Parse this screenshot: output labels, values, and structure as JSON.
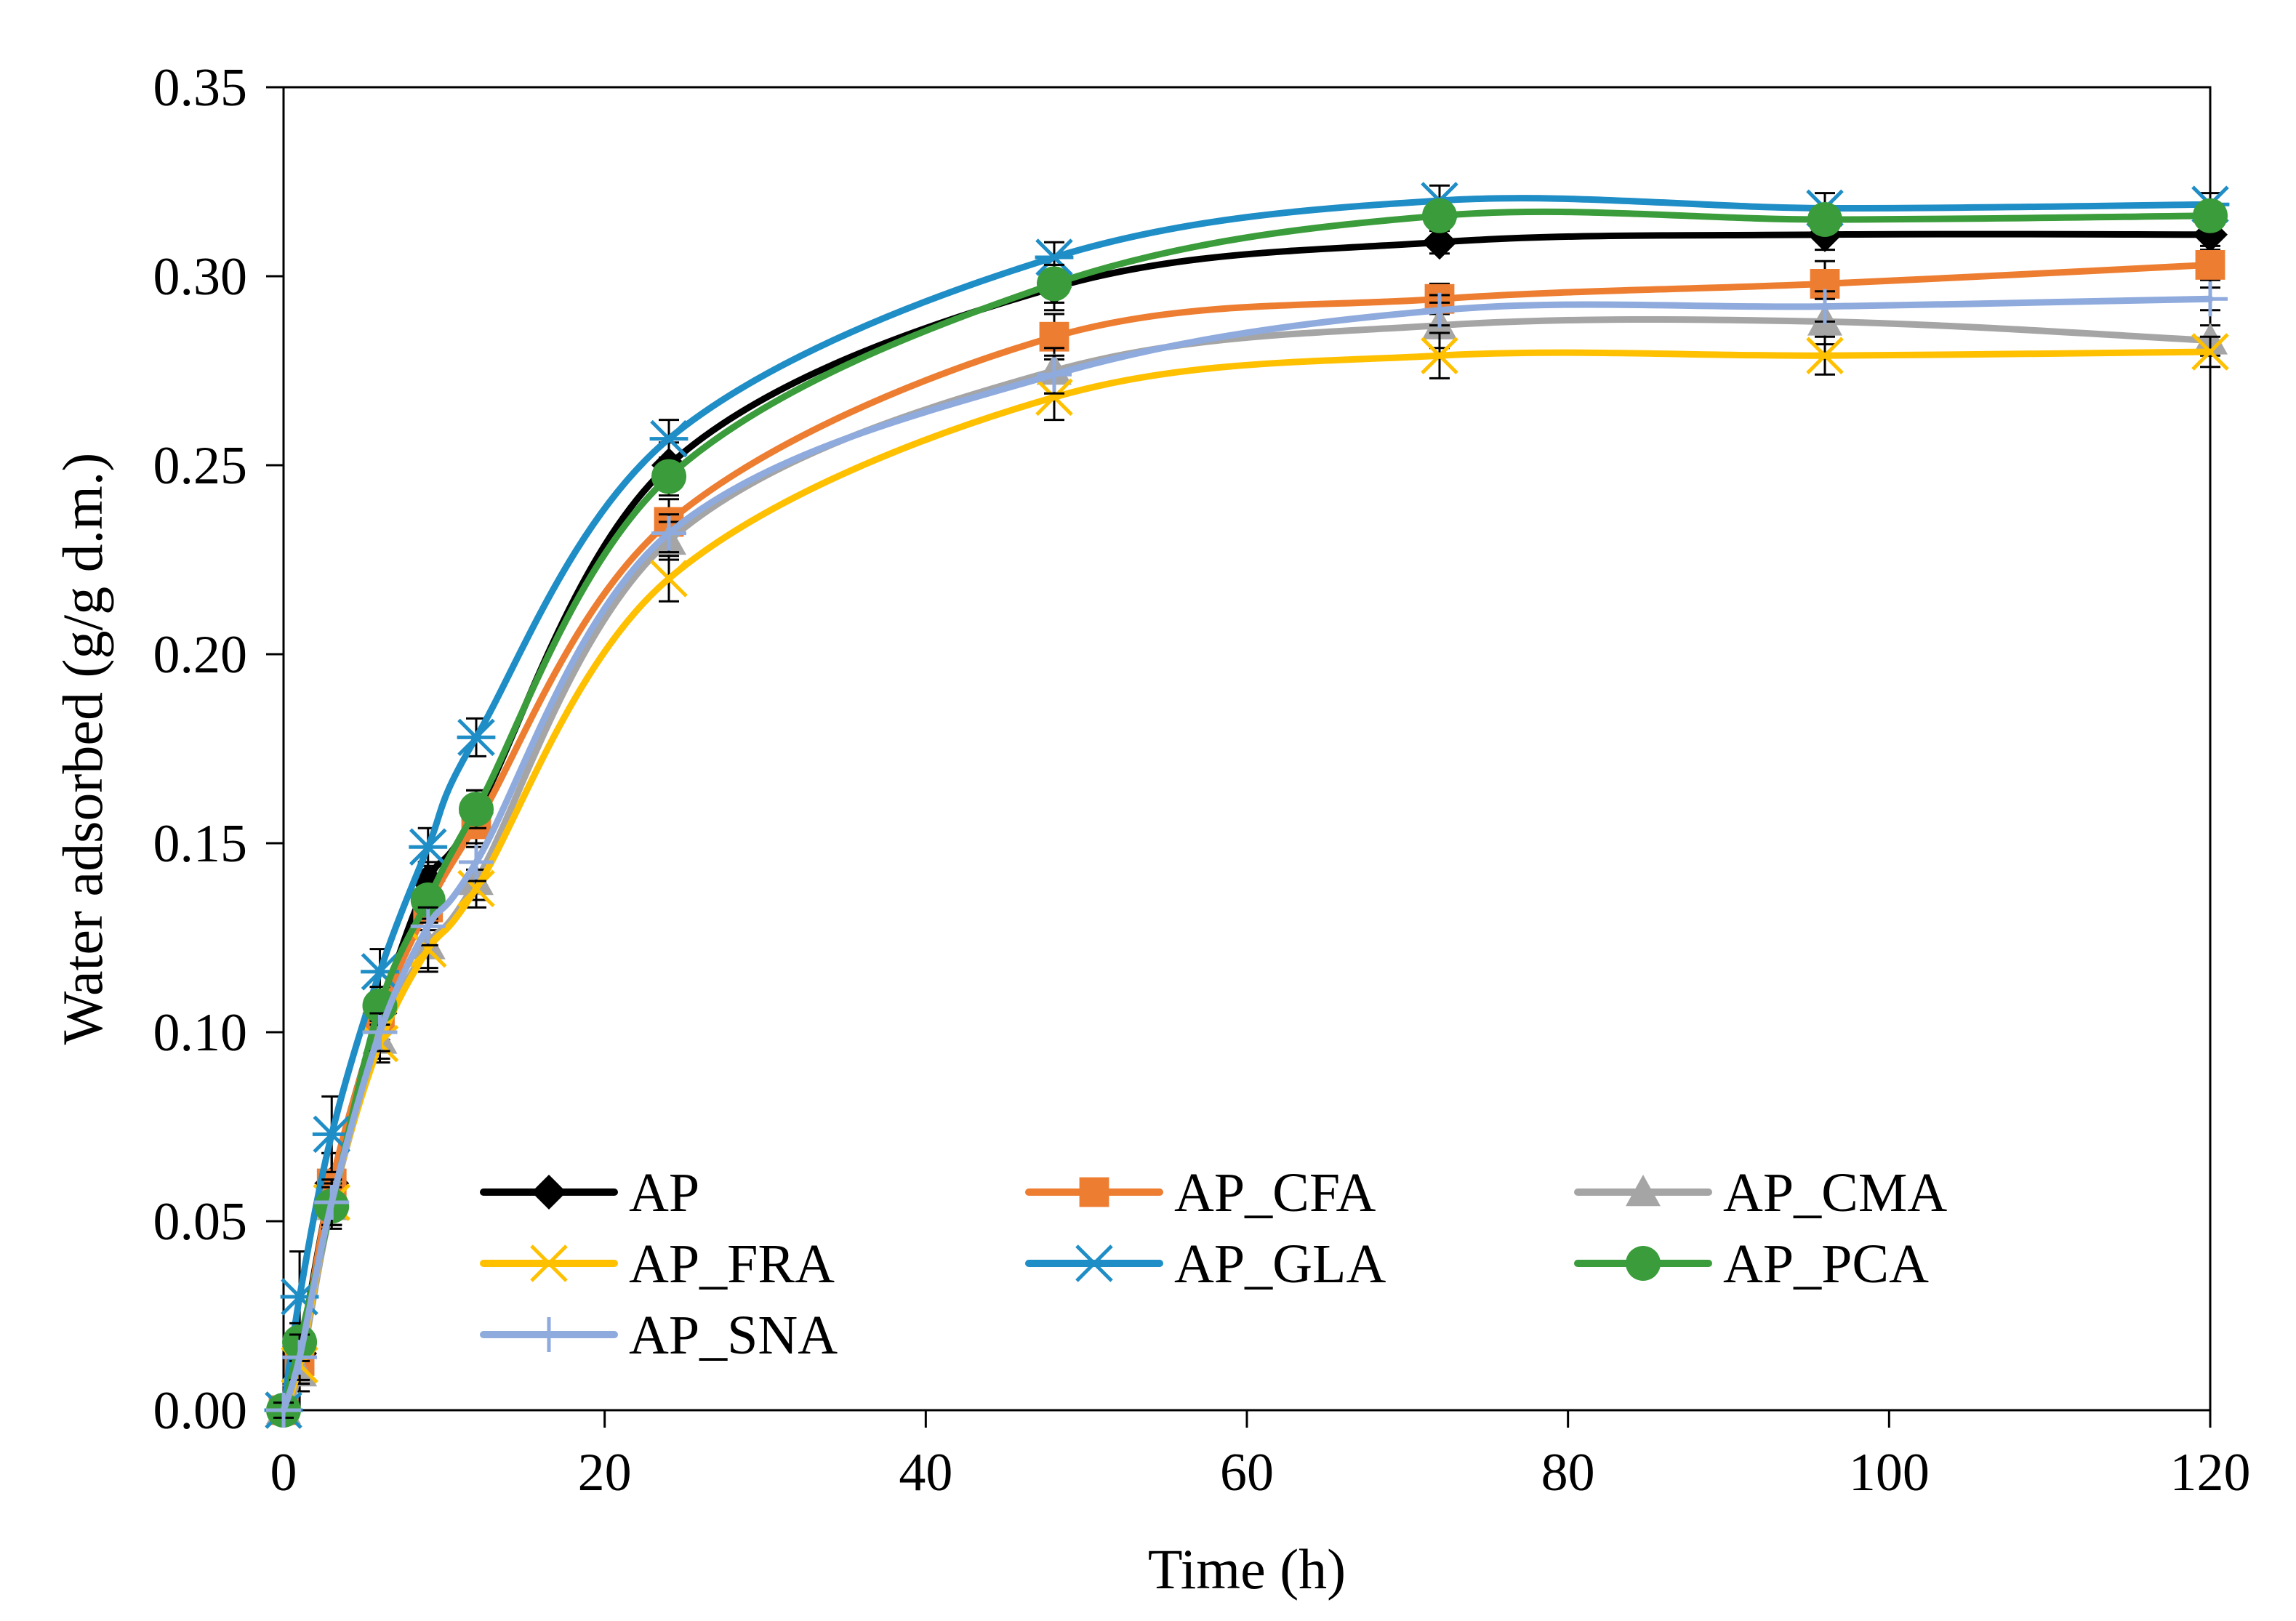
{
  "chart_data": {
    "type": "line",
    "title": "",
    "xlabel": "Time (h)",
    "ylabel": "Water adsorbed (g/g d.m.)",
    "xlim": [
      0,
      120
    ],
    "ylim": [
      0,
      0.35
    ],
    "xticks": [
      0,
      20,
      40,
      60,
      80,
      100,
      120
    ],
    "yticks": [
      0.0,
      0.05,
      0.1,
      0.15,
      0.2,
      0.25,
      0.3,
      0.35
    ],
    "xtick_labels": [
      "0",
      "20",
      "40",
      "60",
      "80",
      "100",
      "120"
    ],
    "ytick_labels": [
      "0.00",
      "0.05",
      "0.10",
      "0.15",
      "0.20",
      "0.25",
      "0.30",
      "0.35"
    ],
    "grid": false,
    "legend_position": "bottom-center inside plot",
    "x": [
      0,
      1,
      3,
      6,
      9,
      12,
      24,
      48,
      72,
      96,
      120
    ],
    "series": [
      {
        "name": "AP",
        "color": "#000000",
        "marker": "diamond",
        "values": [
          0.0,
          0.015,
          0.06,
          0.105,
          0.14,
          0.158,
          0.25,
          0.297,
          0.309,
          0.311,
          0.311
        ],
        "errors": [
          0.002,
          0.015,
          0.008,
          0.005,
          0.005,
          0.006,
          0.006,
          0.006,
          0.003,
          0.004,
          0.003
        ]
      },
      {
        "name": "AP_CFA",
        "color": "#ED7D31",
        "marker": "square",
        "values": [
          0.0,
          0.013,
          0.06,
          0.104,
          0.133,
          0.155,
          0.235,
          0.284,
          0.294,
          0.298,
          0.303
        ],
        "errors": [
          0.002,
          0.006,
          0.008,
          0.006,
          0.006,
          0.006,
          0.006,
          0.006,
          0.004,
          0.006,
          0.004
        ]
      },
      {
        "name": "AP_CMA",
        "color": "#A5A5A5",
        "marker": "triangle",
        "values": [
          0.0,
          0.01,
          0.054,
          0.098,
          0.123,
          0.14,
          0.23,
          0.275,
          0.287,
          0.288,
          0.283
        ],
        "errors": [
          0.002,
          0.005,
          0.006,
          0.005,
          0.006,
          0.005,
          0.005,
          0.006,
          0.006,
          0.006,
          0.004
        ]
      },
      {
        "name": "AP_FRA",
        "color": "#FFC000",
        "marker": "x",
        "values": [
          0.0,
          0.012,
          0.055,
          0.097,
          0.122,
          0.138,
          0.22,
          0.268,
          0.279,
          0.279,
          0.28
        ],
        "errors": [
          0.002,
          0.005,
          0.006,
          0.005,
          0.006,
          0.005,
          0.006,
          0.006,
          0.006,
          0.005,
          0.004
        ]
      },
      {
        "name": "AP_GLA",
        "color": "#1F8DC6",
        "marker": "asterisk",
        "values": [
          0.0,
          0.03,
          0.073,
          0.116,
          0.149,
          0.178,
          0.257,
          0.305,
          0.32,
          0.318,
          0.319
        ],
        "errors": [
          0.002,
          0.012,
          0.01,
          0.006,
          0.005,
          0.005,
          0.005,
          0.004,
          0.004,
          0.004,
          0.003
        ]
      },
      {
        "name": "AP_PCA",
        "color": "#3A9C3A",
        "marker": "circle",
        "values": [
          0.0,
          0.018,
          0.054,
          0.107,
          0.135,
          0.159,
          0.247,
          0.298,
          0.316,
          0.315,
          0.316
        ],
        "errors": [
          0.002,
          0.005,
          0.005,
          0.005,
          0.005,
          0.005,
          0.005,
          0.005,
          0.003,
          0.003,
          0.003
        ]
      },
      {
        "name": "AP_SNA",
        "color": "#8FAADC",
        "marker": "plus",
        "values": [
          0.0,
          0.014,
          0.055,
          0.1,
          0.128,
          0.145,
          0.232,
          0.274,
          0.291,
          0.292,
          0.294
        ],
        "errors": [
          0.002,
          0.006,
          0.006,
          0.005,
          0.005,
          0.005,
          0.005,
          0.005,
          0.004,
          0.004,
          0.003
        ]
      }
    ]
  }
}
